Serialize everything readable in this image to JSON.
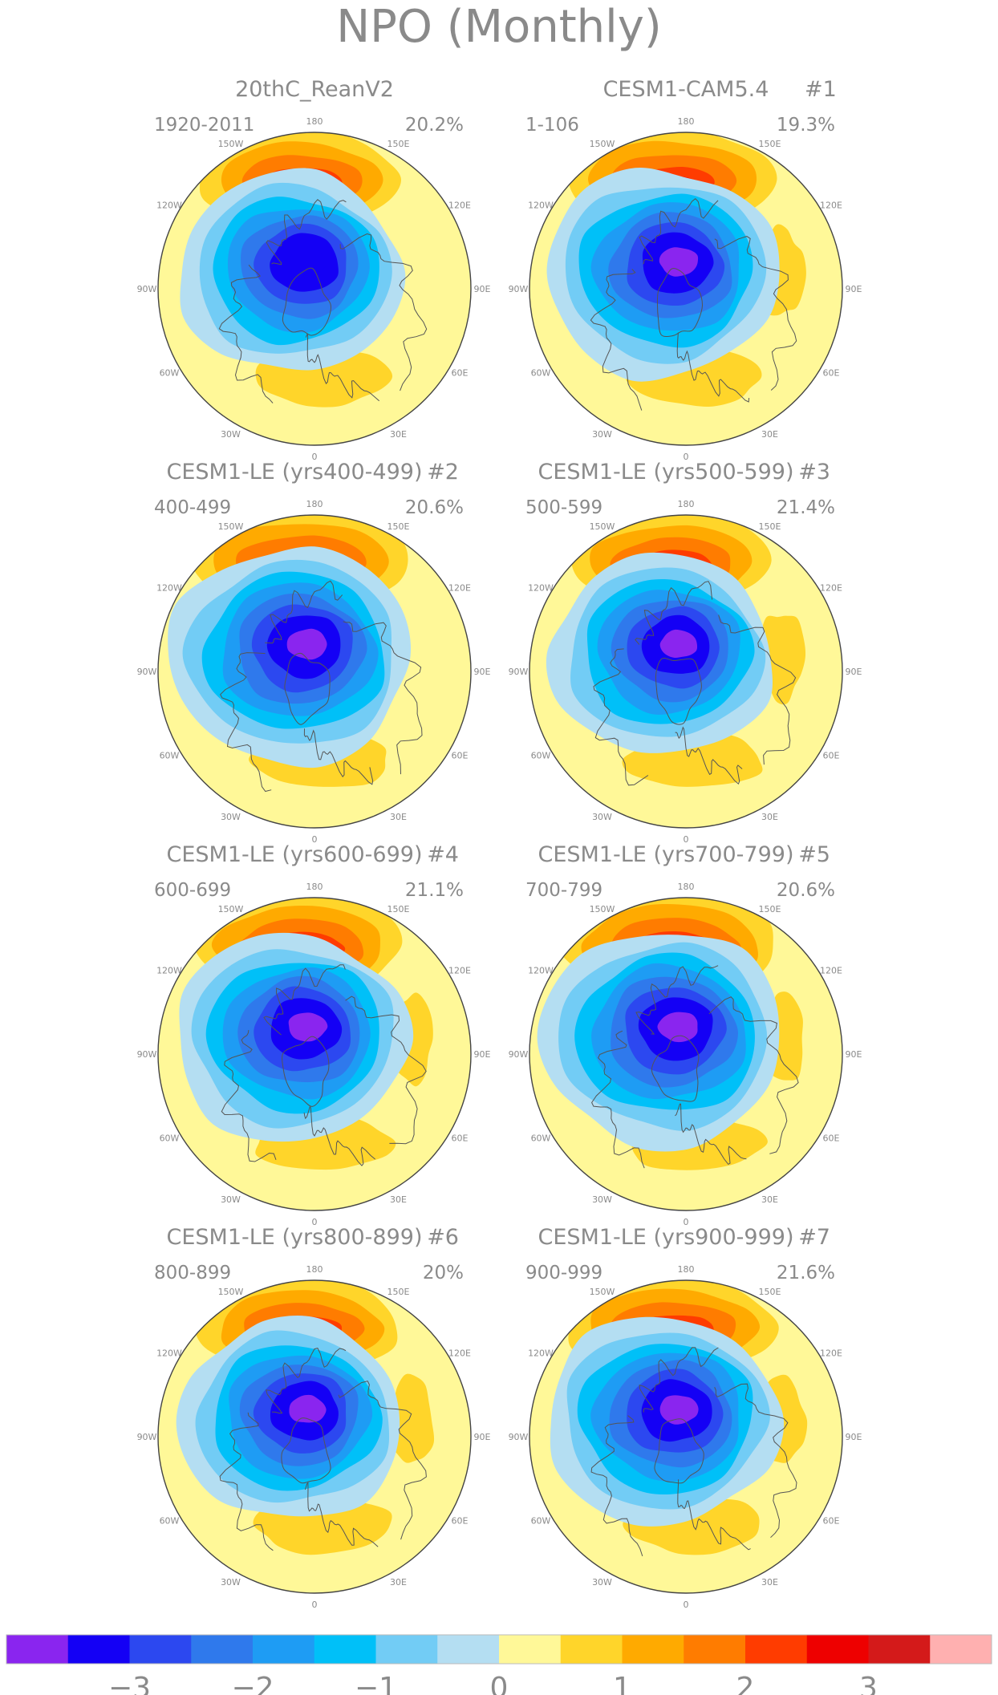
{
  "figure": {
    "title": "NPO (Monthly)"
  },
  "lon_labels": [
    "180",
    "150E",
    "120E",
    "90E",
    "60E",
    "30E",
    "0",
    "30W",
    "60W",
    "90W",
    "120W",
    "150W"
  ],
  "panels": [
    {
      "title": "20thC_ReanV2",
      "number": "",
      "years": "1920-2011",
      "variance": "20.2%"
    },
    {
      "title": "CESM1-CAM5.4",
      "number": "#1",
      "years": "1-106",
      "variance": "19.3%"
    },
    {
      "title": "CESM1-LE (yrs400-499)",
      "number": "#2",
      "years": "400-499",
      "variance": "20.6%"
    },
    {
      "title": "CESM1-LE (yrs500-599)",
      "number": "#3",
      "years": "500-599",
      "variance": "21.4%"
    },
    {
      "title": "CESM1-LE (yrs600-699)",
      "number": "#4",
      "years": "600-699",
      "variance": "21.1%"
    },
    {
      "title": "CESM1-LE (yrs700-799)",
      "number": "#5",
      "years": "700-799",
      "variance": "20.6%"
    },
    {
      "title": "CESM1-LE (yrs800-899)",
      "number": "#6",
      "years": "800-899",
      "variance": "20%"
    },
    {
      "title": "CESM1-LE (yrs900-999)",
      "number": "#7",
      "years": "900-999",
      "variance": "21.6%"
    }
  ],
  "colorbar": {
    "colors": [
      "#8a25ef",
      "#1400f5",
      "#2c48f0",
      "#2f79ec",
      "#1e9cf4",
      "#00c0f8",
      "#72ccf5",
      "#b4def2",
      "#fff898",
      "#ffd52a",
      "#ffaa00",
      "#ff7c00",
      "#ff3c00",
      "#ee0000",
      "#d41a1a",
      "#ffb0b0"
    ],
    "tick_labels": [
      "−3",
      "−2",
      "−1",
      "0",
      "1",
      "2",
      "3"
    ]
  }
}
